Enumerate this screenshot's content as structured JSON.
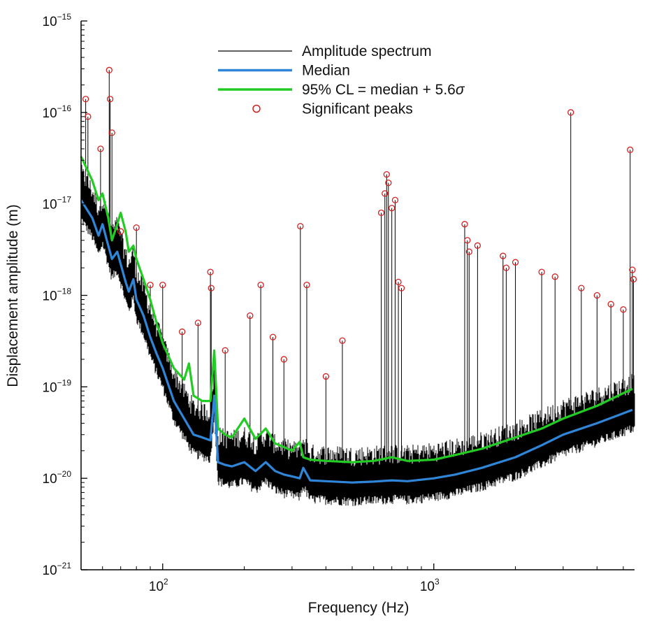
{
  "chart_data": {
    "type": "line",
    "xlabel": "Frequency (Hz)",
    "ylabel": "Displacement amplitude (m)",
    "x_scale": "log",
    "y_scale": "log",
    "xlim": [
      50,
      5500
    ],
    "ylim": [
      1e-21,
      1e-15
    ],
    "grid": false,
    "legend_position": "top-center",
    "x_ticks": [
      {
        "value": 100,
        "base": "10",
        "exp": "2"
      },
      {
        "value": 1000,
        "base": "10",
        "exp": "3"
      }
    ],
    "y_ticks": [
      {
        "value": 1e-21,
        "base": "10",
        "exp": "−21"
      },
      {
        "value": 1e-20,
        "base": "10",
        "exp": "−20"
      },
      {
        "value": 1e-19,
        "base": "10",
        "exp": "−19"
      },
      {
        "value": 1e-18,
        "base": "10",
        "exp": "−18"
      },
      {
        "value": 1e-17,
        "base": "10",
        "exp": "−17"
      },
      {
        "value": 1e-16,
        "base": "10",
        "exp": "−16"
      },
      {
        "value": 1e-15,
        "base": "10",
        "exp": "−15"
      }
    ],
    "legend": [
      {
        "label": "Amplitude spectrum",
        "kind": "line",
        "color": "#000000"
      },
      {
        "label": "Median",
        "kind": "line",
        "color": "#2f86d8"
      },
      {
        "label_prefix": "95% CL = median + 5.6",
        "label_symbol": "σ",
        "kind": "line",
        "color": "#22cc22"
      },
      {
        "label": "Significant peaks",
        "kind": "marker",
        "color": "#d62020"
      }
    ],
    "series": [
      {
        "name": "Median",
        "color": "#2f86d8",
        "x": [
          50,
          55,
          58,
          60,
          63,
          65,
          68,
          70,
          73,
          75,
          78,
          80,
          85,
          90,
          95,
          100,
          110,
          120,
          130,
          140,
          150,
          155,
          160,
          170,
          180,
          200,
          220,
          240,
          260,
          280,
          300,
          320,
          330,
          350,
          400,
          500,
          600,
          700,
          800,
          1000,
          1200,
          1500,
          2000,
          2500,
          3000,
          4000,
          5400
        ],
        "y": [
          1.1e-17,
          7e-18,
          4.5e-18,
          6e-18,
          3.5e-18,
          2.5e-18,
          3e-18,
          2.2e-18,
          1.4e-18,
          1.1e-18,
          1.5e-18,
          9e-19,
          6e-19,
          3.5e-19,
          2.3e-19,
          1.6e-19,
          7e-20,
          4.5e-20,
          3e-20,
          2.8e-20,
          2.6e-20,
          8e-20,
          1.5e-20,
          1.4e-20,
          1.35e-20,
          1.5e-20,
          1.2e-20,
          1.5e-20,
          1.2e-20,
          1.1e-20,
          1.05e-20,
          1e-20,
          1.3e-20,
          9.5e-21,
          9.3e-21,
          9e-21,
          9.2e-21,
          9.5e-21,
          9.3e-21,
          1e-20,
          1.1e-20,
          1.3e-20,
          1.7e-20,
          2.3e-20,
          3e-20,
          4e-20,
          5.6e-20
        ]
      },
      {
        "name": "95% CL = median + 5.6σ",
        "color": "#22cc22",
        "x": [
          50,
          55,
          58,
          60,
          63,
          65,
          68,
          70,
          73,
          75,
          78,
          80,
          85,
          90,
          95,
          100,
          110,
          120,
          125,
          130,
          140,
          150,
          155,
          160,
          170,
          180,
          200,
          220,
          240,
          260,
          280,
          300,
          320,
          330,
          350,
          400,
          500,
          600,
          700,
          800,
          1000,
          1200,
          1500,
          2000,
          2500,
          3000,
          4000,
          5400
        ],
        "y": [
          3.3e-17,
          1.8e-17,
          1.1e-17,
          1.3e-17,
          7e-18,
          4e-18,
          6e-18,
          8e-18,
          5e-18,
          3e-18,
          3.5e-18,
          2.5e-18,
          1.5e-18,
          9e-19,
          5e-19,
          3e-19,
          1.6e-19,
          1.2e-19,
          1.8e-19,
          8e-20,
          7e-20,
          7e-20,
          2.5e-19,
          3.5e-20,
          3e-20,
          2.8e-20,
          4.5e-20,
          2.7e-20,
          3.5e-20,
          2.4e-20,
          2.2e-20,
          2e-20,
          2.5e-20,
          1.7e-20,
          1.6e-20,
          1.55e-20,
          1.5e-20,
          1.55e-20,
          1.7e-20,
          1.55e-20,
          1.6e-20,
          1.8e-20,
          2.1e-20,
          2.8e-20,
          3.5e-20,
          4.5e-20,
          6.2e-20,
          9.5e-20
        ]
      }
    ],
    "peaks": [
      {
        "x": 52,
        "y": 1.4e-16
      },
      {
        "x": 53,
        "y": 9e-17
      },
      {
        "x": 59,
        "y": 4e-17
      },
      {
        "x": 63.5,
        "y": 2.9e-16
      },
      {
        "x": 64,
        "y": 1.4e-16
      },
      {
        "x": 65,
        "y": 6e-17
      },
      {
        "x": 70,
        "y": 5e-18
      },
      {
        "x": 80,
        "y": 5.5e-18
      },
      {
        "x": 90,
        "y": 1.3e-18
      },
      {
        "x": 100,
        "y": 1.3e-18
      },
      {
        "x": 118,
        "y": 4e-19
      },
      {
        "x": 135,
        "y": 5e-19
      },
      {
        "x": 150,
        "y": 1.8e-18
      },
      {
        "x": 151,
        "y": 1.2e-18
      },
      {
        "x": 170,
        "y": 2.5e-19
      },
      {
        "x": 210,
        "y": 6e-19
      },
      {
        "x": 230,
        "y": 1.3e-18
      },
      {
        "x": 255,
        "y": 3.5e-19
      },
      {
        "x": 280,
        "y": 2e-19
      },
      {
        "x": 322,
        "y": 5.7e-18
      },
      {
        "x": 340,
        "y": 1.3e-18
      },
      {
        "x": 400,
        "y": 1.3e-19
      },
      {
        "x": 460,
        "y": 3.2e-19
      },
      {
        "x": 640,
        "y": 8e-18
      },
      {
        "x": 660,
        "y": 1.3e-17
      },
      {
        "x": 670,
        "y": 2.1e-17
      },
      {
        "x": 680,
        "y": 1.7e-17
      },
      {
        "x": 700,
        "y": 9e-18
      },
      {
        "x": 720,
        "y": 1.1e-17
      },
      {
        "x": 740,
        "y": 1.4e-18
      },
      {
        "x": 760,
        "y": 1.2e-18
      },
      {
        "x": 1300,
        "y": 6e-18
      },
      {
        "x": 1330,
        "y": 4e-18
      },
      {
        "x": 1350,
        "y": 3e-18
      },
      {
        "x": 1450,
        "y": 3.5e-18
      },
      {
        "x": 1800,
        "y": 2.7e-18
      },
      {
        "x": 1850,
        "y": 2e-18
      },
      {
        "x": 2000,
        "y": 2.3e-18
      },
      {
        "x": 2500,
        "y": 1.8e-18
      },
      {
        "x": 2800,
        "y": 1.6e-18
      },
      {
        "x": 3200,
        "y": 1e-16
      },
      {
        "x": 3500,
        "y": 1.2e-18
      },
      {
        "x": 4000,
        "y": 1e-18
      },
      {
        "x": 4500,
        "y": 8e-19
      },
      {
        "x": 5000,
        "y": 7e-19
      },
      {
        "x": 5300,
        "y": 3.9e-17
      },
      {
        "x": 5400,
        "y": 1.9e-18
      },
      {
        "x": 5450,
        "y": 1.5e-18
      }
    ]
  }
}
